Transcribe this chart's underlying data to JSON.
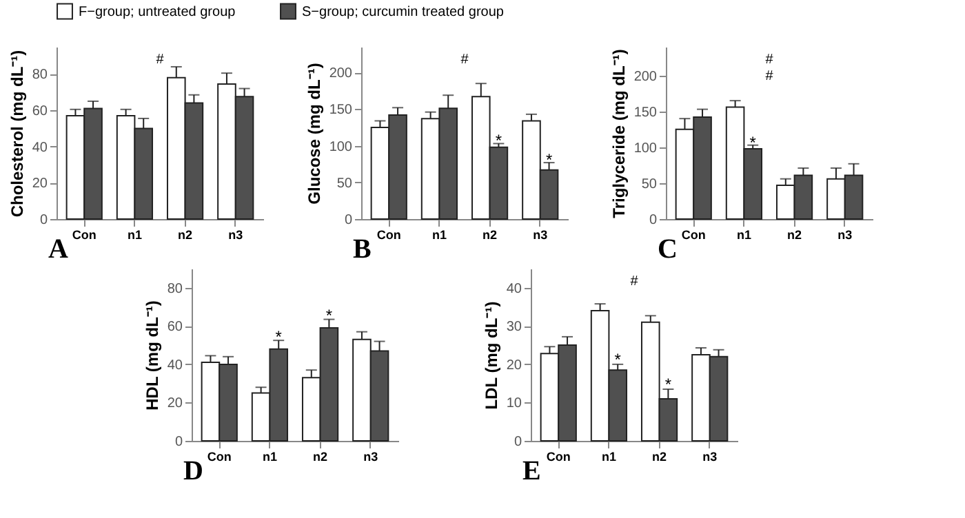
{
  "chart_data": [
    {
      "type": "bar",
      "title": "A",
      "ylabel": "Cholesterol (mg dL⁻¹)",
      "categories": [
        "Con",
        "n1",
        "n2",
        "n3"
      ],
      "ylim": [
        0,
        95
      ],
      "yticks": [
        0,
        20,
        40,
        60,
        80
      ],
      "grid": false,
      "legend": "top",
      "series": [
        {
          "name": "F−group; untreated group",
          "color": "#ffffff",
          "values": [
            57,
            57,
            78,
            74.5
          ],
          "errors": [
            3.5,
            3.5,
            6,
            6
          ]
        },
        {
          "name": "S−group; curcumin treated group",
          "color": "#505050",
          "values": [
            61,
            50,
            64,
            67.5
          ],
          "errors": [
            4,
            5.5,
            4.5,
            4.5
          ]
        }
      ],
      "annotations": [
        "#"
      ]
    },
    {
      "type": "bar",
      "title": "B",
      "ylabel": "Glucose (mg dL⁻¹)",
      "categories": [
        "Con",
        "n1",
        "n2",
        "n3"
      ],
      "ylim": [
        0,
        235
      ],
      "yticks": [
        0,
        50,
        100,
        150,
        200
      ],
      "grid": false,
      "legend": false,
      "series": [
        {
          "color": "#ffffff",
          "values": [
            125,
            137,
            167,
            134
          ],
          "errors": [
            9,
            9,
            18,
            9
          ]
        },
        {
          "color": "#505050",
          "values": [
            142,
            151,
            98,
            67
          ],
          "errors": [
            10,
            18,
            5,
            10
          ]
        }
      ],
      "annotations": [
        "#",
        {
          "text": "*",
          "x": "n2",
          "y": 103
        },
        {
          "text": "*",
          "x": "n3",
          "y": 77
        }
      ]
    },
    {
      "type": "bar",
      "title": "C",
      "ylabel": "Triglyceride (mg dL⁻¹)",
      "categories": [
        "Con",
        "n1",
        "n2",
        "n3"
      ],
      "ylim": [
        0,
        240
      ],
      "yticks": [
        0,
        50,
        100,
        150,
        200
      ],
      "grid": false,
      "legend": false,
      "series": [
        {
          "color": "#ffffff",
          "values": [
            125,
            156,
            47,
            56
          ],
          "errors": [
            15,
            9,
            9,
            15
          ]
        },
        {
          "color": "#505050",
          "values": [
            142,
            98,
            61,
            61
          ],
          "errors": [
            11,
            5,
            10,
            16
          ]
        }
      ],
      "annotations": [
        "#",
        "#",
        {
          "text": "*",
          "x": "n1",
          "y": 103
        }
      ]
    },
    {
      "type": "bar",
      "title": "D",
      "ylabel": "HDL (mg dL⁻¹)",
      "categories": [
        "Con",
        "n1",
        "n2",
        "n3"
      ],
      "ylim": [
        0,
        90
      ],
      "yticks": [
        0,
        20,
        40,
        60,
        80
      ],
      "grid": false,
      "legend": false,
      "series": [
        {
          "color": "#ffffff",
          "values": [
            41,
            25,
            33,
            53
          ],
          "errors": [
            3.5,
            3,
            4,
            4
          ]
        },
        {
          "color": "#505050",
          "values": [
            40,
            48,
            59,
            47
          ],
          "errors": [
            4,
            4.5,
            4.5,
            5
          ]
        }
      ],
      "annotations": [
        {
          "text": "*",
          "x": "n1",
          "y": 53
        },
        {
          "text": "*",
          "x": "n2",
          "y": 64
        }
      ]
    },
    {
      "type": "bar",
      "title": "E",
      "ylabel": "LDL (mg dL⁻¹)",
      "categories": [
        "Con",
        "n1",
        "n2",
        "n3"
      ],
      "ylim": [
        0,
        45
      ],
      "yticks": [
        0,
        10,
        20,
        30,
        40
      ],
      "grid": false,
      "legend": false,
      "series": [
        {
          "color": "#ffffff",
          "values": [
            22.8,
            34,
            31,
            22.5
          ],
          "errors": [
            1.8,
            1.8,
            1.7,
            1.8
          ]
        },
        {
          "color": "#505050",
          "values": [
            25,
            18.5,
            11,
            22
          ],
          "errors": [
            2.2,
            1.5,
            2.5,
            1.8
          ]
        }
      ],
      "annotations": [
        "#",
        {
          "text": "*",
          "x": "n1",
          "y": 20.5
        },
        {
          "text": "*",
          "x": "n2",
          "y": 14
        }
      ]
    }
  ]
}
